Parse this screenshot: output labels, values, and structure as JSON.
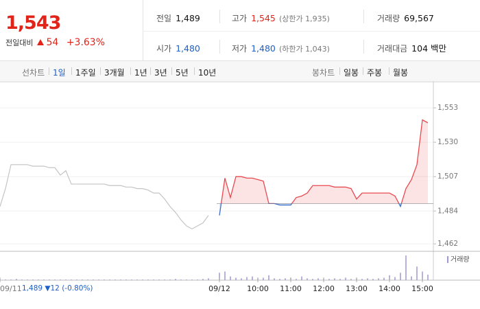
{
  "header": {
    "price": "1,543",
    "change_label": "전일대비",
    "change": "54",
    "change_pct": "+3.63%"
  },
  "stats": [
    {
      "label": "전일",
      "value": "1,489"
    },
    {
      "label": "고가",
      "value": "1,545",
      "extra": "(상한가 1,935)"
    },
    {
      "label": "거래량",
      "value": "69,567"
    },
    {
      "label": "시가",
      "value": "1,480"
    },
    {
      "label": "저가",
      "value": "1,480",
      "extra": "(하한가 1,043)"
    },
    {
      "label": "거래대금",
      "value": "104 백만"
    }
  ],
  "tabs": {
    "line_label": "선차트",
    "line_items": [
      "1일",
      "1주일",
      "3개월",
      "1년",
      "3년",
      "5년",
      "10년"
    ],
    "candle_label": "봉차트",
    "candle_items": [
      "일봉",
      "주봉",
      "월봉"
    ]
  },
  "footer": {
    "prev_close": "1,489",
    "prev_change": "▼12",
    "prev_change_pct": "(-0.80%)"
  },
  "chart_data": {
    "type": "line",
    "categories": [
      "09/11",
      null,
      null,
      null,
      null,
      null,
      null,
      null,
      null,
      null,
      null,
      null,
      null,
      null,
      null,
      null,
      null,
      null,
      null,
      null,
      null,
      null,
      null,
      null,
      null,
      null,
      null,
      null,
      null,
      null,
      null,
      null,
      null,
      null,
      null,
      null,
      null,
      null,
      null,
      null,
      "09/12",
      null,
      null,
      null,
      null,
      null,
      null,
      "10:00",
      null,
      null,
      null,
      null,
      null,
      "11:00",
      null,
      null,
      null,
      null,
      null,
      "12:00",
      null,
      null,
      null,
      null,
      null,
      "13:00",
      null,
      null,
      null,
      null,
      null,
      "14:00",
      null,
      null,
      null,
      null,
      null,
      "15:00",
      null
    ],
    "series": [
      {
        "color": "#c4c4c4",
        "values": [
          1487,
          1499,
          1515,
          1515,
          1515,
          1515,
          1514,
          1514,
          1514,
          1513,
          1513,
          1508,
          1511,
          1502,
          1502,
          1502,
          1502,
          1502,
          1502,
          1502,
          1501,
          1501,
          1501,
          1500,
          1500,
          1499,
          1499,
          1498,
          1496,
          1496,
          1492,
          1487,
          1483,
          1478,
          1474,
          1472,
          1474,
          1476,
          1481,
          null,
          null,
          null,
          null,
          null,
          null,
          null,
          null,
          null,
          null,
          null,
          null,
          null,
          null,
          null,
          null,
          null,
          null,
          null,
          null,
          null,
          null,
          null,
          null,
          null,
          null,
          null,
          null,
          null,
          null,
          null,
          null,
          null,
          null,
          null,
          null,
          null,
          null,
          null,
          null
        ]
      },
      {
        "color": "#e8494f",
        "color_below": "#3b6fc9",
        "values": [
          null,
          null,
          null,
          null,
          null,
          null,
          null,
          null,
          null,
          null,
          null,
          null,
          null,
          null,
          null,
          null,
          null,
          null,
          null,
          null,
          null,
          null,
          null,
          null,
          null,
          null,
          null,
          null,
          null,
          null,
          null,
          null,
          null,
          null,
          null,
          null,
          null,
          null,
          null,
          null,
          1481,
          1506,
          1493,
          1507,
          1507,
          1506,
          1506,
          1505,
          1504,
          1489,
          1489,
          1488,
          1488,
          1488,
          1493,
          1494,
          1496,
          1501,
          1501,
          1501,
          1501,
          1500,
          1500,
          1500,
          1499,
          1492,
          1496,
          1496,
          1496,
          1496,
          1496,
          1496,
          1494,
          1487,
          1499,
          1505,
          1515,
          1545,
          1543
        ]
      }
    ],
    "baseline": 1489,
    "volume_label": "거래량",
    "volume_color": "#a395d2",
    "volume": [
      2,
      1,
      1,
      2,
      1,
      1,
      1,
      1,
      1,
      1,
      1,
      1,
      1,
      1,
      1,
      1,
      1,
      1,
      1,
      1,
      1,
      1,
      1,
      1,
      1,
      1,
      1,
      1,
      1,
      1,
      1,
      1,
      2,
      1,
      1,
      1,
      1,
      2,
      3,
      null,
      12,
      14,
      6,
      4,
      3,
      5,
      6,
      3,
      4,
      8,
      3,
      2,
      3,
      4,
      2,
      6,
      3,
      2,
      3,
      2,
      2,
      3,
      2,
      4,
      2,
      3,
      2,
      3,
      2,
      3,
      4,
      8,
      5,
      12,
      40,
      6,
      22,
      14,
      9
    ],
    "ylim": [
      1457,
      1565
    ],
    "yticks": [
      {
        "value": 1462,
        "label": "1,462"
      },
      {
        "value": 1484,
        "label": "1,484"
      },
      {
        "value": 1507,
        "label": "1,507"
      },
      {
        "value": 1530,
        "label": "1,530"
      },
      {
        "value": 1553,
        "label": "1,553"
      }
    ],
    "grid": true
  }
}
